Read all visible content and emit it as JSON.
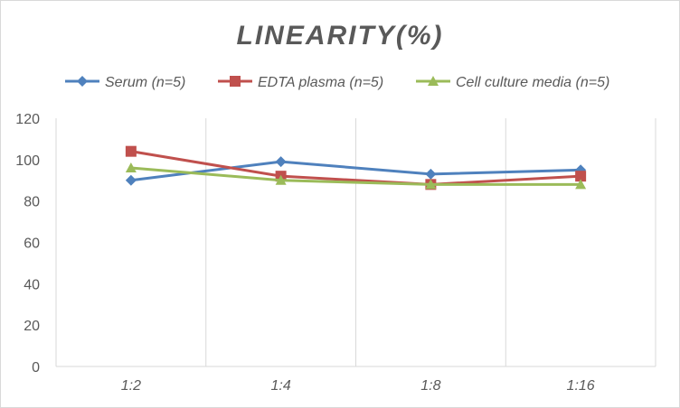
{
  "chart_data": {
    "type": "line",
    "title": "LINEARITY(%)",
    "xlabel": "",
    "ylabel": "",
    "categories": [
      "1:2",
      "1:4",
      "1:8",
      "1:16"
    ],
    "ylim": [
      0,
      120
    ],
    "yticks": [
      0,
      20,
      40,
      60,
      80,
      100,
      120
    ],
    "grid": "vertical",
    "legend_position": "top",
    "series": [
      {
        "name": "Serum (n=5)",
        "values": [
          90,
          99,
          93,
          95
        ],
        "color": "#4f81bd",
        "marker": "diamond"
      },
      {
        "name": "EDTA plasma (n=5)",
        "values": [
          104,
          92,
          88,
          92
        ],
        "color": "#c0504d",
        "marker": "square"
      },
      {
        "name": "Cell culture media (n=5)",
        "values": [
          96,
          90,
          88,
          88
        ],
        "color": "#9bbb59",
        "marker": "triangle"
      }
    ]
  }
}
